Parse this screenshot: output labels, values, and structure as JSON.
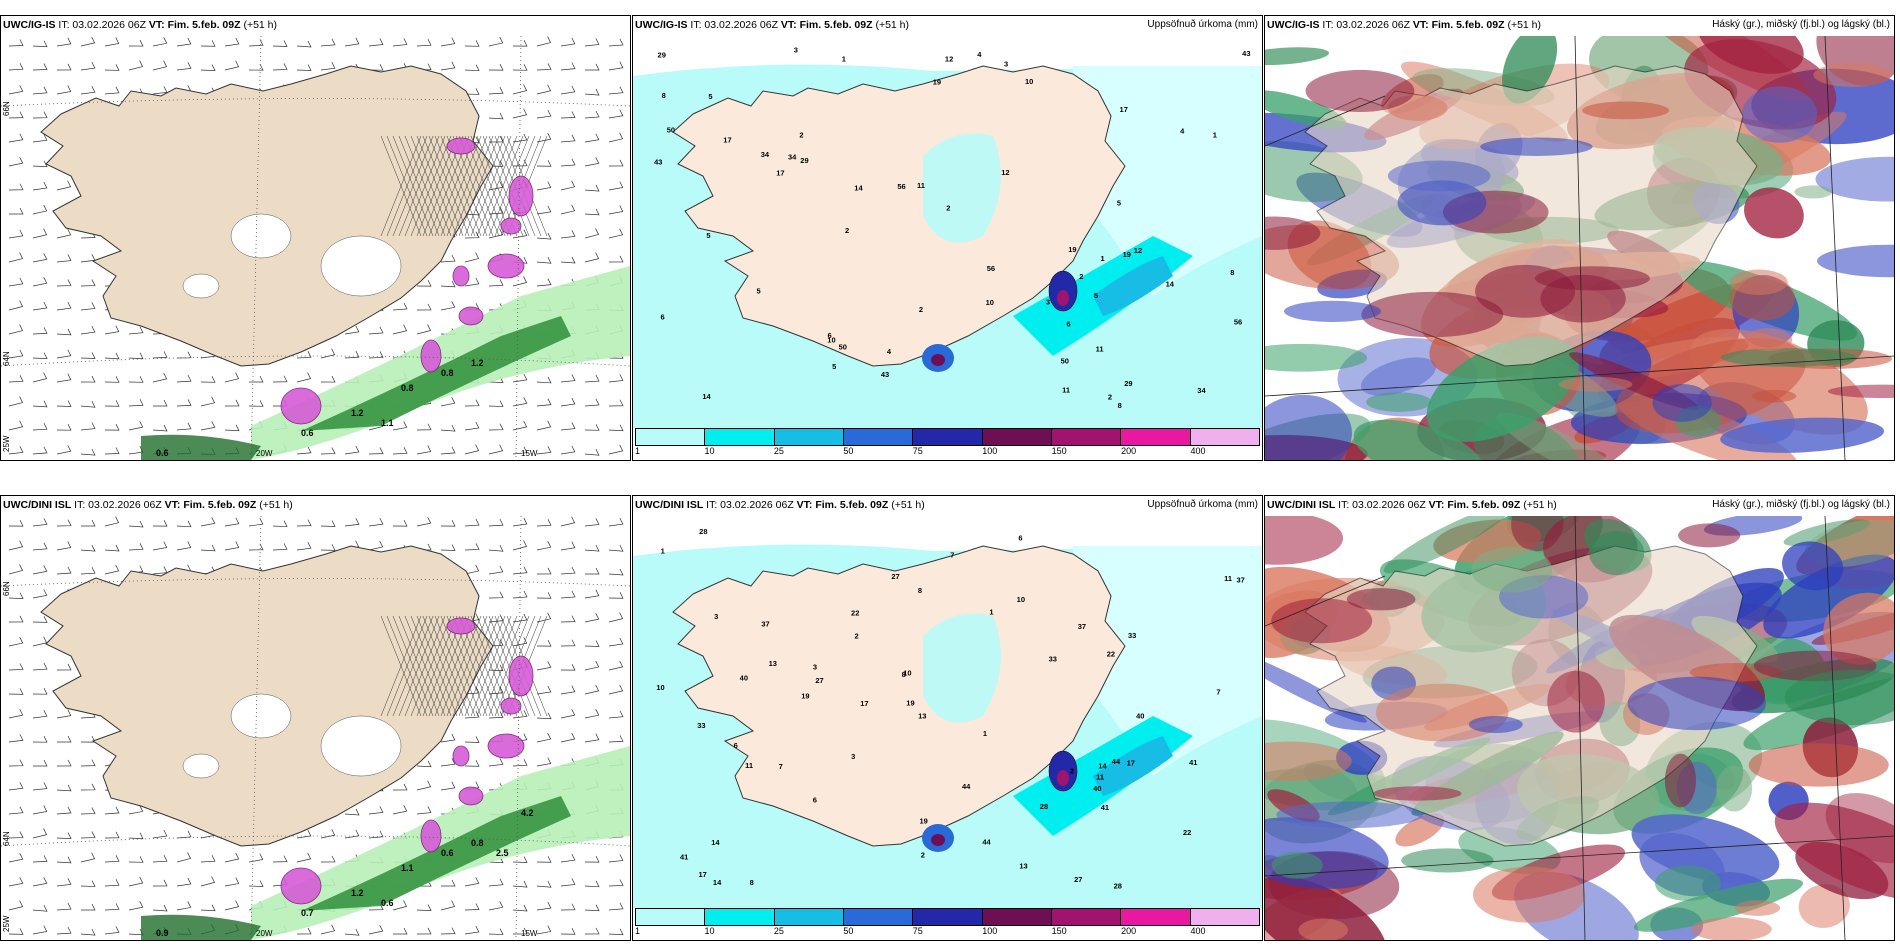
{
  "panels": [
    {
      "id": "p1",
      "model": "UWC/IG-IS",
      "it": "IT: 03.02.2026 06Z",
      "vt_label": "VT:",
      "vt": "Fim. 5.feb. 09Z",
      "lead": "(+51 h)",
      "right": "",
      "type": "wind"
    },
    {
      "id": "p2",
      "model": "UWC/IG-IS",
      "it": "IT: 03.02.2026 06Z",
      "vt_label": "VT:",
      "vt": "Fim. 5.feb. 09Z",
      "lead": "(+51 h)",
      "right": "Uppsöfnuð úrkoma (mm)",
      "type": "precip"
    },
    {
      "id": "p3",
      "model": "UWC/IG-IS",
      "it": "IT: 03.02.2026 06Z",
      "vt_label": "VT:",
      "vt": "Fim. 5.feb. 09Z",
      "lead": "(+51 h)",
      "right": "Háský (gr.), miðský (fj.bl.) og lágský (bl.)",
      "type": "cloud"
    },
    {
      "id": "p4",
      "model": "UWC/DINI ISL",
      "it": "IT: 03.02.2026 06Z",
      "vt_label": "VT:",
      "vt": "Fim. 5.feb. 09Z",
      "lead": "(+51 h)",
      "right": "",
      "type": "wind"
    },
    {
      "id": "p5",
      "model": "UWC/DINI ISL",
      "it": "IT: 03.02.2026 06Z",
      "vt_label": "VT:",
      "vt": "Fim. 5.feb. 09Z",
      "lead": "(+51 h)",
      "right": "Uppsöfnuð úrkoma (mm)",
      "type": "precip"
    },
    {
      "id": "p6",
      "model": "UWC/DINI ISL",
      "it": "IT: 03.02.2026 06Z",
      "vt_label": "VT:",
      "vt": "Fim. 5.feb. 09Z",
      "lead": "(+51 h)",
      "right": "Háský (gr.), miðský (fj.bl.) og lágský (bl.)",
      "type": "cloud"
    }
  ],
  "geo_labels": {
    "lat66": "66N",
    "lat64": "64N",
    "lon25": "25W",
    "lon20": "20W",
    "lon15": "15W"
  },
  "legend": {
    "colors": [
      "#b8fbf8",
      "#00eef0",
      "#18bde6",
      "#2a69d8",
      "#2228a8",
      "#6e0e55",
      "#a0136e",
      "#e818a0",
      "#f0b0ef"
    ],
    "labels": [
      "1",
      "10",
      "25",
      "50",
      "75",
      "100",
      "150",
      "200",
      "400"
    ]
  },
  "precip_values_top": [
    "2",
    "1",
    "2",
    "4",
    "5",
    "6",
    "14",
    "29",
    "34",
    "43",
    "50",
    "56",
    "17",
    "19",
    "12",
    "10",
    "11",
    "5",
    "3",
    "8"
  ],
  "precip_values_bottom": [
    "1",
    "2",
    "3",
    "6",
    "13",
    "19",
    "33",
    "22",
    "44",
    "41",
    "40",
    "37",
    "28",
    "27",
    "17",
    "14",
    "10",
    "11",
    "8",
    "7"
  ],
  "wind_values_top": [
    "0.6",
    "0.8",
    "0.8",
    "1.1",
    "1.2",
    "0.6",
    "1.2"
  ],
  "wind_values_bottom": [
    "0.7",
    "1.1",
    "0.6",
    "0.6",
    "1.2",
    "0.9",
    "0.8",
    "4.2",
    "2.5"
  ]
}
